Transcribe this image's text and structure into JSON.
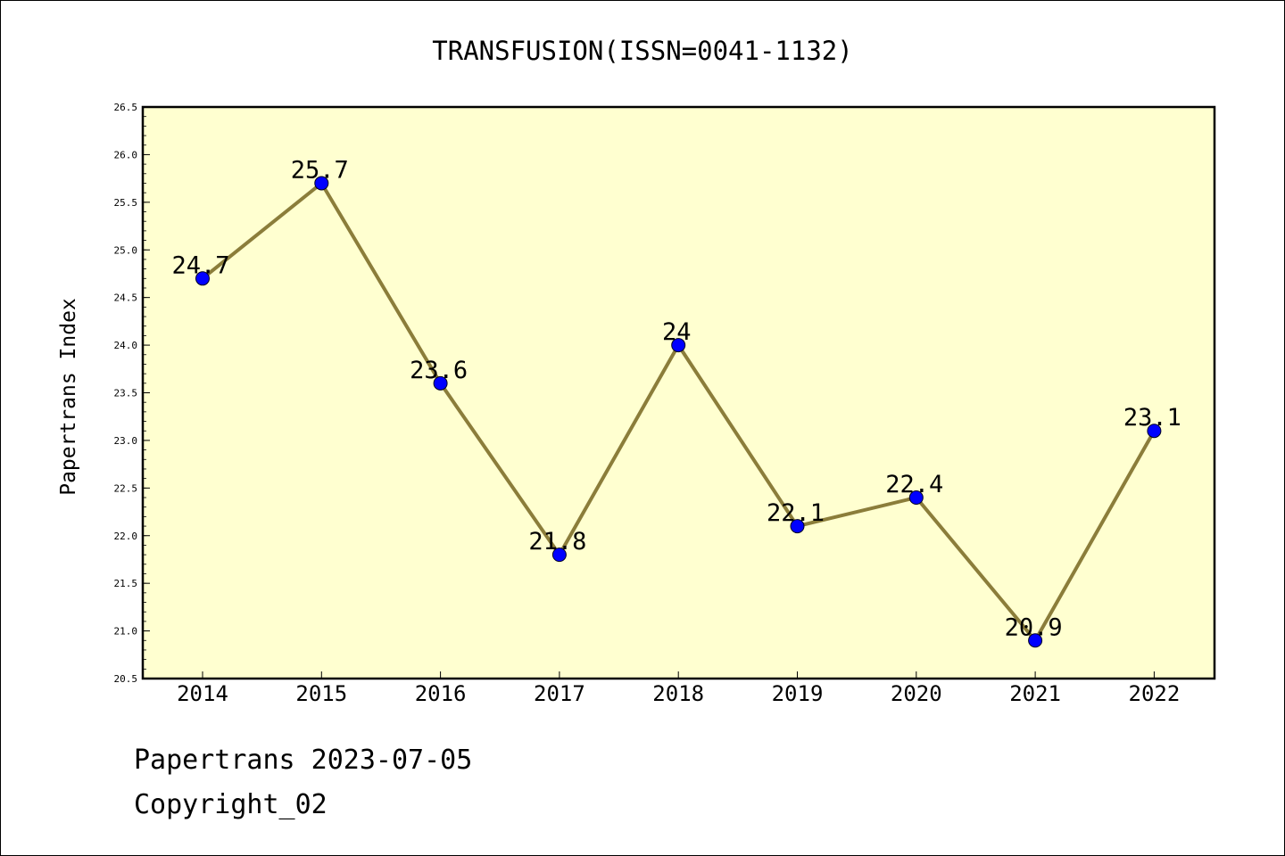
{
  "chart_data": {
    "type": "line",
    "title": "TRANSFUSION(ISSN=0041-1132)",
    "xlabel": "",
    "ylabel": "Papertrans Index",
    "categories": [
      "2014",
      "2015",
      "2016",
      "2017",
      "2018",
      "2019",
      "2020",
      "2021",
      "2022"
    ],
    "values": [
      24.7,
      25.7,
      23.6,
      21.8,
      24.0,
      22.1,
      22.4,
      20.9,
      23.1
    ],
    "data_labels": [
      "24.7",
      "25.7",
      "23.6",
      "21.8",
      "24",
      "22.1",
      "22.4",
      "20.9",
      "23.1"
    ],
    "ylim": [
      20.5,
      26.5
    ],
    "yticks": [
      "20.5",
      "21.0",
      "21.5",
      "22.0",
      "22.5",
      "23.0",
      "23.5",
      "24.0",
      "24.5",
      "25.0",
      "25.5",
      "26.0",
      "26.5"
    ],
    "grid": false,
    "legend": "none",
    "colors": {
      "plot_background": "#ffffd0",
      "line": "#8b7d3a",
      "marker": "#0000ff"
    }
  },
  "footer": {
    "line1": "Papertrans 2023-07-05",
    "line2": "Copyright_02"
  }
}
